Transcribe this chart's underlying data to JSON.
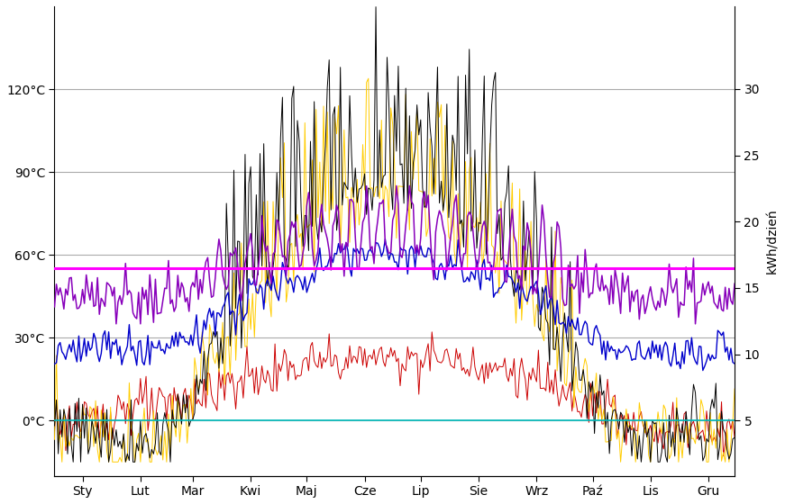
{
  "months_labels": [
    "Sty",
    "Lut",
    "Mar",
    "Kwi",
    "Maj",
    "Cze",
    "Lip",
    "Sie",
    "Wrz",
    "Paź",
    "Lis",
    "Gru"
  ],
  "ylim_left": [
    -20,
    150
  ],
  "ylim_right": [
    -5.33,
    40
  ],
  "yticks_left": [
    0,
    30,
    60,
    90,
    120
  ],
  "yticks_right": [
    5,
    10,
    15,
    20,
    25,
    30
  ],
  "ylabel_right": "kWh/dzień",
  "ytick_labels_left": [
    "0°C",
    "30°C",
    "60°C",
    "90°C",
    "120°C"
  ],
  "magenta_hline": 55,
  "cyan_hline": 0,
  "grid_color": "#aaaaaa",
  "background_color": "#ffffff",
  "line_colors": {
    "black": "#000000",
    "blue": "#0000cc",
    "yellow": "#ffcc00",
    "purple": "#8800bb",
    "red": "#cc0000",
    "magenta": "#ff00ff",
    "cyan": "#00bbbb"
  }
}
